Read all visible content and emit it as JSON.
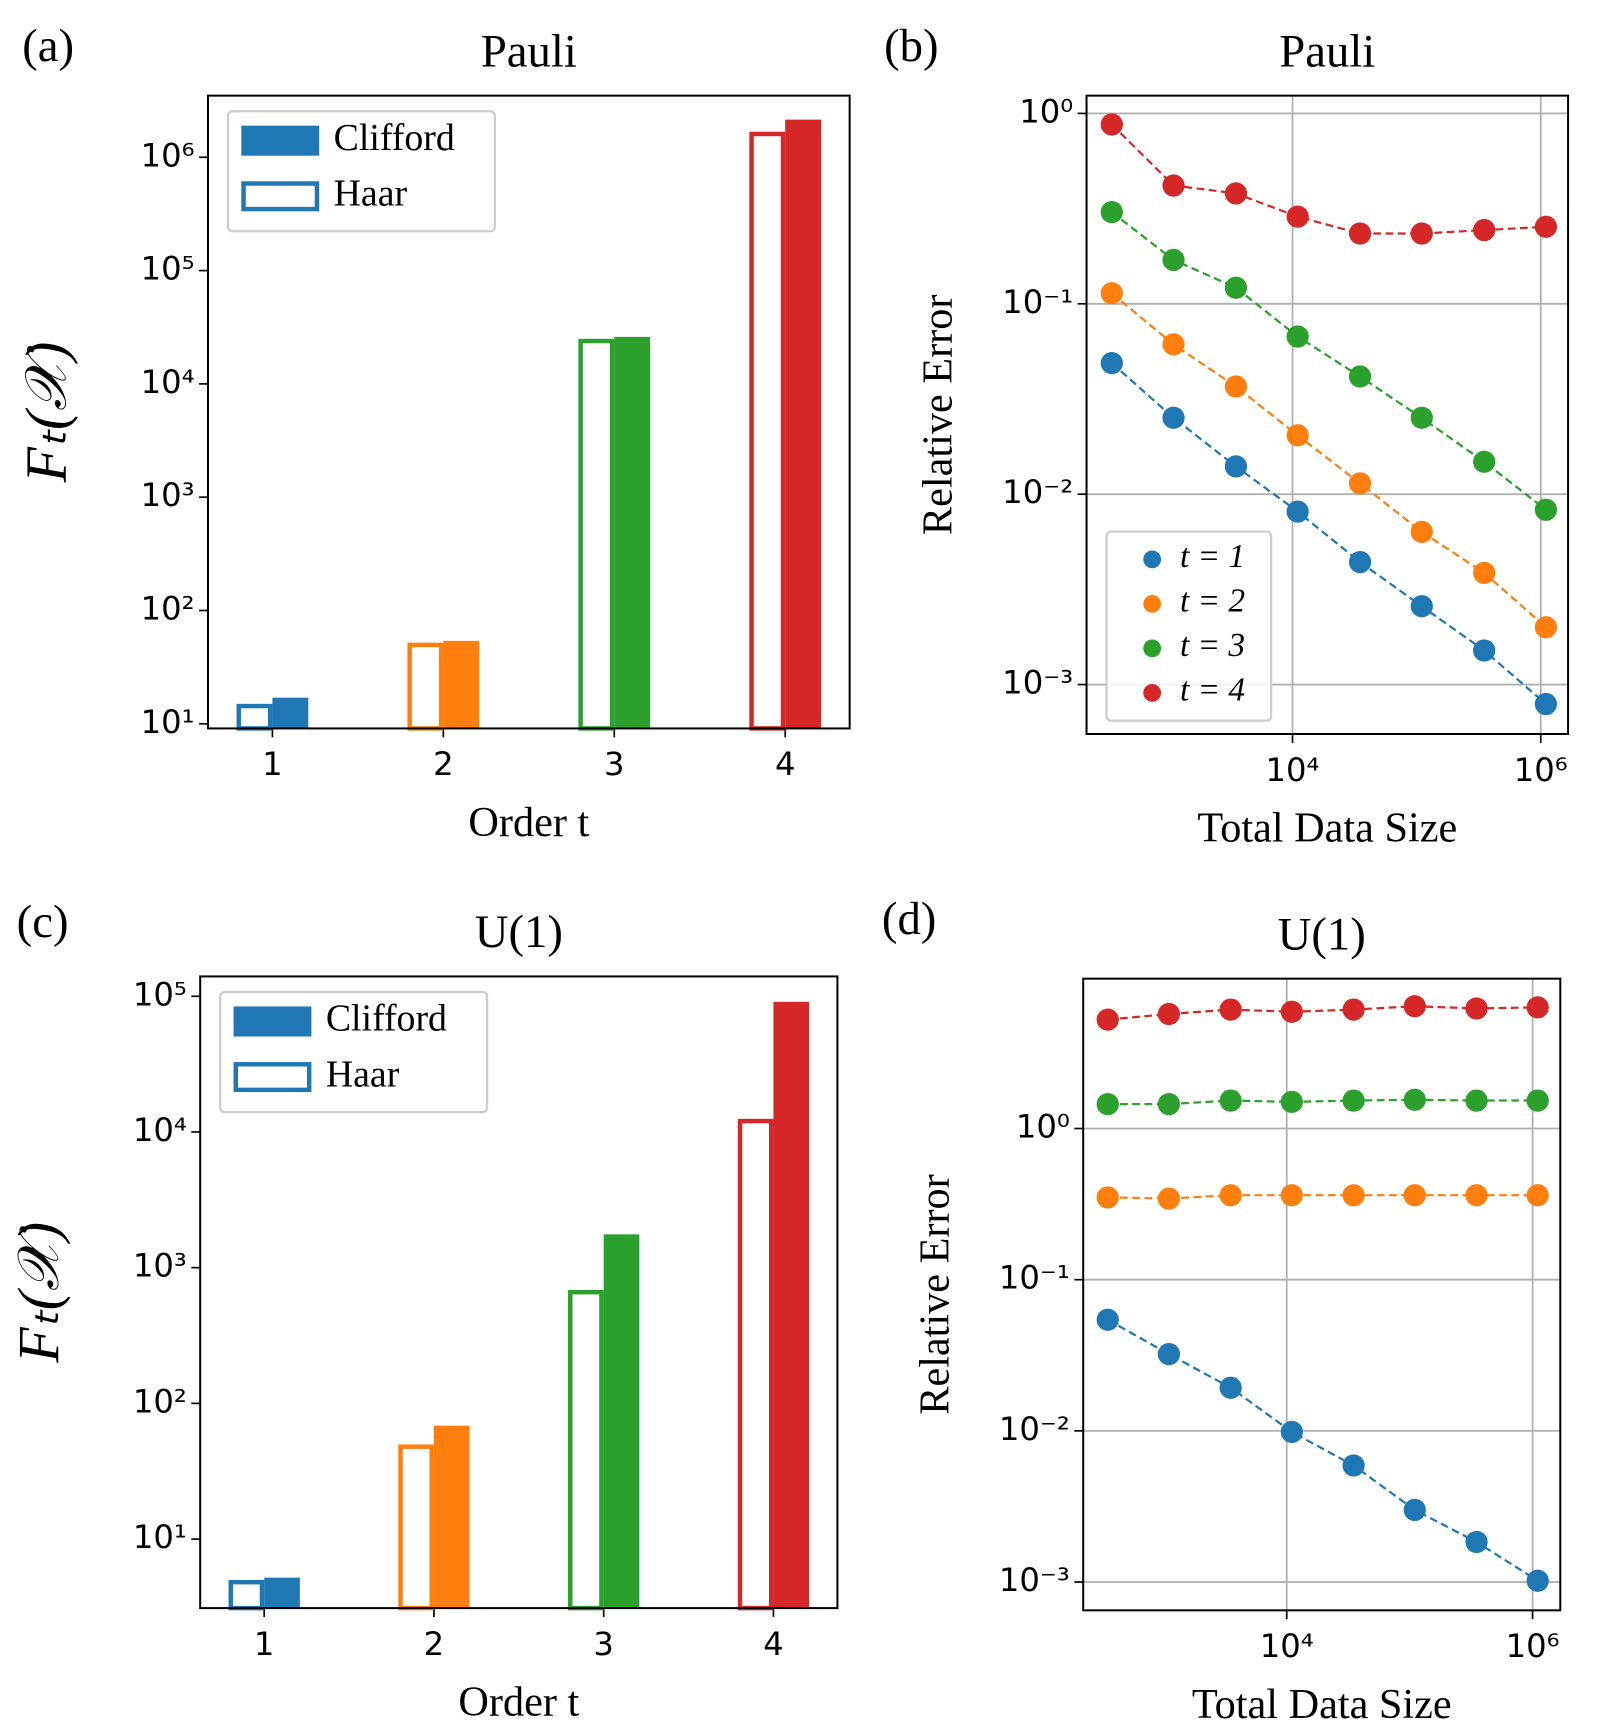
{
  "chart_data": [
    {
      "type": "bar",
      "panel_label": "(a)",
      "title": "Pauli",
      "xlabel": "Order t",
      "ylabel": "Fₜ(𝒳)",
      "categories": [
        "1",
        "2",
        "3",
        "4"
      ],
      "colors": [
        "#1f77b4",
        "#ff7f0e",
        "#2ca02c",
        "#d62728"
      ],
      "series": [
        {
          "name": "Clifford",
          "color": "#1f77b4",
          "filled": true,
          "values": [
            17,
            54,
            26000,
            2150000
          ]
        },
        {
          "name": "Haar",
          "color": "#1f77b4",
          "filled": false,
          "values": [
            15,
            52,
            25000,
            1680000
          ]
        }
      ],
      "log_y": true,
      "ylim": [
        9.1,
        3500000
      ],
      "yticks": [
        {
          "value": 10,
          "label": "10¹"
        },
        {
          "value": 100,
          "label": "10²"
        },
        {
          "value": 1000,
          "label": "10³"
        },
        {
          "value": 10000,
          "label": "10⁴"
        },
        {
          "value": 100000,
          "label": "10⁵"
        },
        {
          "value": 1000000,
          "label": "10⁶"
        }
      ],
      "grid": false,
      "legend": "upper left"
    },
    {
      "type": "line",
      "panel_label": "(b)",
      "title": "Pauli",
      "xlabel": "Total Data Size",
      "ylabel": "Relative Error",
      "x": [
        350,
        1100,
        3500,
        11000,
        35000,
        110000,
        350000,
        1100000
      ],
      "series": [
        {
          "name": "t = 1",
          "color": "#1f77b4",
          "values": [
            0.0488,
            0.0252,
            0.014,
            0.0081,
            0.0044,
            0.00258,
            0.00151,
            0.00079
          ]
        },
        {
          "name": "t = 2",
          "color": "#ff7f0e",
          "values": [
            0.1136,
            0.0612,
            0.0368,
            0.0204,
            0.0114,
            0.00634,
            0.00386,
            0.002
          ]
        },
        {
          "name": "t = 3",
          "color": "#2ca02c",
          "values": [
            0.303,
            0.17,
            0.1215,
            0.0673,
            0.0415,
            0.0252,
            0.0148,
            0.00828
          ]
        },
        {
          "name": "t = 4",
          "color": "#d62728",
          "values": [
            0.875,
            0.418,
            0.38,
            0.287,
            0.234,
            0.234,
            0.244,
            0.254
          ]
        }
      ],
      "log_x": true,
      "log_y": true,
      "xlim": [
        219,
        1660000
      ],
      "ylim": [
        0.00055,
        1.24
      ],
      "xticks": [
        {
          "value": 10000,
          "label": "10⁴"
        },
        {
          "value": 1000000,
          "label": "10⁶"
        }
      ],
      "yticks": [
        {
          "value": 0.001,
          "label": "10⁻³"
        },
        {
          "value": 0.01,
          "label": "10⁻²"
        },
        {
          "value": 0.1,
          "label": "10⁻¹"
        },
        {
          "value": 1,
          "label": "10⁰"
        }
      ],
      "grid": true,
      "legend": "lower left"
    },
    {
      "type": "bar",
      "panel_label": "(c)",
      "title": "U(1)",
      "xlabel": "Order t",
      "ylabel": "Fₜ(𝒳)",
      "categories": [
        "1",
        "2",
        "3",
        "4"
      ],
      "colors": [
        "#1f77b4",
        "#ff7f0e",
        "#2ca02c",
        "#d62728"
      ],
      "series": [
        {
          "name": "Clifford",
          "color": "#1f77b4",
          "filled": true,
          "values": [
            5.2,
            68.5,
            1760,
            91000
          ]
        },
        {
          "name": "Haar",
          "color": "#1f77b4",
          "filled": false,
          "values": [
            5,
            49.8,
            685,
            12500
          ]
        }
      ],
      "log_y": true,
      "ylim": [
        3.1,
        140000
      ],
      "yticks": [
        {
          "value": 10,
          "label": "10¹"
        },
        {
          "value": 100,
          "label": "10²"
        },
        {
          "value": 1000,
          "label": "10³"
        },
        {
          "value": 10000,
          "label": "10⁴"
        },
        {
          "value": 100000,
          "label": "10⁵"
        }
      ],
      "grid": false,
      "legend": "upper left"
    },
    {
      "type": "line",
      "panel_label": "(d)",
      "title": "U(1)",
      "xlabel": "Total Data Size",
      "ylabel": "Relative Error",
      "x": [
        350,
        1100,
        3500,
        11000,
        35000,
        110000,
        350000,
        1100000
      ],
      "series": [
        {
          "color": "#1f77b4",
          "values": [
            0.0543,
            0.0322,
            0.0193,
            0.00984,
            0.0059,
            0.003,
            0.00184,
            0.00102
          ]
        },
        {
          "color": "#ff7f0e",
          "values": [
            0.35,
            0.344,
            0.362,
            0.362,
            0.362,
            0.362,
            0.362,
            0.362
          ]
        },
        {
          "color": "#2ca02c",
          "values": [
            1.45,
            1.45,
            1.53,
            1.5,
            1.53,
            1.55,
            1.53,
            1.53
          ]
        },
        {
          "color": "#d62728",
          "values": [
            5.25,
            5.72,
            6.12,
            5.92,
            6.12,
            6.44,
            6.22,
            6.33
          ]
        }
      ],
      "log_x": true,
      "log_y": true,
      "xlim": [
        221,
        1680000
      ],
      "ylim": [
        0.00065,
        9.8
      ],
      "xticks": [
        {
          "value": 10000,
          "label": "10⁴"
        },
        {
          "value": 1000000,
          "label": "10⁶"
        }
      ],
      "yticks": [
        {
          "value": 0.001,
          "label": "10⁻³"
        },
        {
          "value": 0.01,
          "label": "10⁻²"
        },
        {
          "value": 0.1,
          "label": "10⁻¹"
        },
        {
          "value": 1,
          "label": "10⁰"
        }
      ],
      "grid": true
    }
  ]
}
